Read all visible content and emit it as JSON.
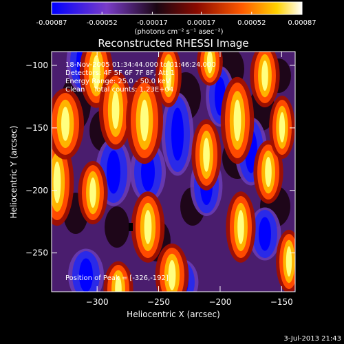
{
  "chart_data": {
    "type": "heatmap",
    "title": "Reconstructed RHESSI Image",
    "xlabel": "Heliocentric X (arcsec)",
    "ylabel": "Heliocentric Y (arcsec)",
    "xlim": [
      -337,
      -139
    ],
    "ylim": [
      -281,
      -89
    ],
    "x_ticks": [
      -300,
      -250,
      -200,
      -150
    ],
    "y_ticks": [
      -100,
      -150,
      -200,
      -250
    ],
    "colorbar": {
      "range": [
        -0.00087,
        0.00087
      ],
      "tick_values": [
        -0.00087,
        -0.00052,
        -0.00017,
        0.00017,
        0.00052,
        0.00087
      ],
      "tick_labels": [
        "-0.00087",
        "-0.00052",
        "-0.00017",
        "0.00017",
        "0.00052",
        "0.00087"
      ],
      "unit_label": "(photons cm⁻² s⁻¹ asec⁻²)"
    },
    "annotations": [
      "18-Nov-2005 01:34:44.000 to 01:46:24.000",
      "Detectors: 4F 5F 6F 7F 8F, Att 1",
      "Energy Range: 25.0 - 50.0 keV",
      "Clean    Total counts: 1.23E+04"
    ],
    "peak_label": "Position of Peak = [-326,-192]",
    "peak_position": [
      -326,
      -192
    ],
    "timestamp": "3-Jul-2013 21:43"
  }
}
